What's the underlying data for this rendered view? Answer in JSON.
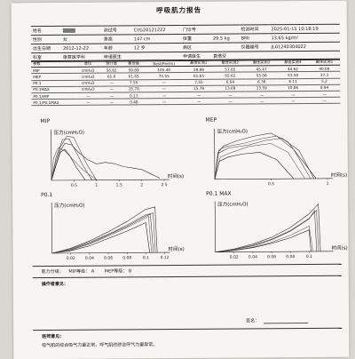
{
  "report": {
    "title": "呼吸肌力报告",
    "info_rows": [
      [
        {
          "label": "姓名",
          "value": "",
          "redacted": true
        },
        {
          "label": "测试号",
          "value": "CYG20121222"
        },
        {
          "label": "门诊号",
          "value": ""
        },
        {
          "label": "检测时间",
          "value": "2025-01-15 10:18:19"
        }
      ],
      [
        {
          "label": "性别",
          "value": "女"
        },
        {
          "label": "身高",
          "value": "147 cm"
        },
        {
          "label": "体重",
          "value": "29.5 kg"
        },
        {
          "label": "BMI",
          "value": "13.65 kg/m²"
        }
      ],
      [
        {
          "label": "出生日期",
          "value": "2012-12-22"
        },
        {
          "label": "年龄",
          "value": "12 岁"
        },
        {
          "label": "病区",
          "value": ""
        },
        {
          "label": "仪器编号",
          "value": "JL01240304022"
        }
      ],
      [
        {
          "label": "科室",
          "value": "康复医学科"
        },
        {
          "label": "申请医生",
          "value": ""
        },
        {
          "label": "申请医生",
          "value": "袁倩芬"
        },
        {
          "label": "",
          "value": ""
        }
      ]
    ],
    "results_headers": [
      "参数",
      "单位",
      "预计值",
      "最佳值",
      "Best/Pre(%)",
      "最佳实测1",
      "最佳实测2",
      "最佳实测3",
      "最佳实测4",
      "最佳实测5"
    ],
    "results_rows": [
      [
        "MIP",
        "cmH₂O",
        "56.82",
        "59.89",
        "105.40",
        "59.89",
        "57.65",
        "45.47",
        "44.62",
        "40.08"
      ],
      [
        "MEP",
        "cmH₂O",
        "81.6",
        "61.65",
        "75.55",
        "61.65",
        "55.62",
        "55.08",
        "53.59",
        "37.3"
      ],
      [
        "P0.1",
        "cmH₂O",
        "—",
        "7.55",
        "—",
        "7.55",
        "6.54",
        "6.38",
        "6.11",
        "5.2"
      ],
      [
        "P0.1MAX",
        "cmH₂O",
        "—",
        "15.78",
        "—",
        "15.78",
        "13.69",
        "13.59",
        "10.86",
        "8.94"
      ],
      [
        "P0.1/MIP",
        "—",
        "—",
        "0.13",
        "—",
        "—",
        "—",
        "—",
        "—",
        "—"
      ],
      [
        "P0.1/P0.1MAX",
        "—",
        "—",
        "0.48",
        "—",
        "—",
        "—",
        "—",
        "—",
        "—"
      ]
    ],
    "grade_line": {
      "label": "肌力分级：",
      "mip": "MIP等级：  A",
      "mep": "MEP等级：  B"
    },
    "operator_label": "操作者意见：",
    "signature_label": "签名：",
    "advice_label": "医师意见：",
    "advice_text": "吸气肌的综合吸气力量正常。呼气肌的综合呼气力量异常。"
  },
  "chart_data": [
    {
      "type": "line",
      "title": "MIP",
      "ylabel": "压力(cmH₂O)",
      "xlabel": "时间(s)",
      "xlim": [
        0,
        2.5
      ],
      "ylim": [
        0,
        65
      ],
      "xticks": [
        0.5,
        1,
        1.5,
        2,
        2.5
      ],
      "xtick_labels": [
        "0.5",
        "1",
        "1.5",
        "2",
        "2.5"
      ],
      "series": [
        {
          "x": [
            0,
            0.1,
            0.2,
            0.3,
            0.45,
            0.6,
            0.8,
            1.0,
            1.2,
            1.4,
            1.6,
            1.8,
            2.0,
            2.2,
            2.4
          ],
          "y": [
            0,
            20,
            40,
            50,
            48,
            38,
            28,
            22,
            24,
            22,
            18,
            16,
            14,
            8,
            2
          ]
        },
        {
          "x": [
            0,
            0.1,
            0.2,
            0.35,
            0.5,
            0.6,
            0.8,
            1.0
          ],
          "y": [
            0,
            25,
            45,
            60,
            58,
            45,
            20,
            0
          ]
        },
        {
          "x": [
            0,
            0.1,
            0.25,
            0.4,
            0.5,
            0.7,
            0.9
          ],
          "y": [
            0,
            30,
            55,
            56,
            44,
            20,
            0
          ]
        },
        {
          "x": [
            0,
            0.05,
            0.15,
            0.3,
            0.45,
            0.7,
            1.0
          ],
          "y": [
            0,
            30,
            44,
            40,
            30,
            14,
            0
          ]
        },
        {
          "x": [
            0,
            0.1,
            0.2,
            0.3,
            0.4,
            0.55,
            0.75
          ],
          "y": [
            0,
            20,
            38,
            42,
            34,
            18,
            0
          ]
        }
      ]
    },
    {
      "type": "line",
      "title": "MEP",
      "ylabel": "压力(cmH₂O)",
      "xlabel": "时间(s)",
      "xlim": [
        0,
        1
      ],
      "ylim": [
        0,
        65
      ],
      "xticks": [
        0.5,
        1
      ],
      "xtick_labels": [
        "0.5",
        "1"
      ],
      "series": [
        {
          "x": [
            0,
            0.03,
            0.08,
            0.2,
            0.35,
            0.5,
            0.65,
            0.8,
            0.9
          ],
          "y": [
            0,
            36,
            45,
            52,
            58,
            62,
            50,
            20,
            0
          ]
        },
        {
          "x": [
            0,
            0.04,
            0.1,
            0.25,
            0.4,
            0.55,
            0.7,
            0.85
          ],
          "y": [
            0,
            40,
            44,
            48,
            54,
            58,
            40,
            0
          ]
        },
        {
          "x": [
            0,
            0.03,
            0.12,
            0.3,
            0.45,
            0.6,
            0.75,
            0.88
          ],
          "y": [
            0,
            35,
            42,
            46,
            52,
            55,
            38,
            0
          ]
        },
        {
          "x": [
            0,
            0.05,
            0.15,
            0.3,
            0.5,
            0.65,
            0.8
          ],
          "y": [
            0,
            30,
            36,
            44,
            48,
            36,
            0
          ]
        },
        {
          "x": [
            0,
            0.04,
            0.12,
            0.25,
            0.4,
            0.55,
            0.7
          ],
          "y": [
            0,
            24,
            30,
            34,
            36,
            26,
            0
          ]
        }
      ]
    },
    {
      "type": "line",
      "title": "P0.1",
      "ylabel": "压力(cmH₂O)",
      "xlabel": "时间(s)",
      "xlim": [
        0,
        0.12
      ],
      "ylim": [
        0,
        8
      ],
      "xticks": [
        0.02,
        0.04,
        0.06,
        0.08,
        0.1,
        0.12
      ],
      "xtick_labels": [
        "0.02",
        "0.04",
        "0.06",
        "0.08",
        "0.1",
        "0.12"
      ],
      "series": [
        {
          "x": [
            0,
            0.02,
            0.04,
            0.06,
            0.08,
            0.1,
            0.11,
            0.112
          ],
          "y": [
            0,
            0.8,
            2.0,
            3.5,
            5.2,
            7.2,
            7.6,
            0
          ]
        },
        {
          "x": [
            0,
            0.02,
            0.04,
            0.06,
            0.08,
            0.1,
            0.108,
            0.11
          ],
          "y": [
            0,
            0.7,
            1.8,
            3.1,
            4.6,
            6.3,
            6.6,
            0
          ]
        },
        {
          "x": [
            0,
            0.02,
            0.04,
            0.06,
            0.08,
            0.1,
            0.105,
            0.108
          ],
          "y": [
            0,
            0.6,
            1.6,
            3.0,
            4.4,
            6.1,
            6.4,
            0
          ]
        },
        {
          "x": [
            0,
            0.02,
            0.04,
            0.06,
            0.08,
            0.1,
            0.103,
            0.106
          ],
          "y": [
            0,
            0.5,
            1.5,
            2.8,
            4.2,
            5.8,
            6.1,
            0
          ]
        },
        {
          "x": [
            0,
            0.02,
            0.04,
            0.06,
            0.08,
            0.1,
            0.104
          ],
          "y": [
            0,
            0.4,
            1.2,
            2.4,
            3.6,
            5.0,
            0
          ]
        }
      ]
    },
    {
      "type": "line",
      "title": "P0.1 MAX",
      "ylabel": "压力(cmH₂O)",
      "xlabel": "时间(s)",
      "xlim": [
        0,
        0.12
      ],
      "ylim": [
        0,
        16
      ],
      "xticks": [
        0.02,
        0.04,
        0.06,
        0.08,
        0.1
      ],
      "xtick_labels": [
        "0.02",
        "0.04",
        "0.06",
        "0.08",
        "0.1"
      ],
      "series": [
        {
          "x": [
            0,
            0.02,
            0.04,
            0.06,
            0.08,
            0.1,
            0.11,
            0.112
          ],
          "y": [
            0,
            1.0,
            2.6,
            4.8,
            8.0,
            12.5,
            15.8,
            0
          ]
        },
        {
          "x": [
            0,
            0.02,
            0.04,
            0.06,
            0.08,
            0.1,
            0.108,
            0.11
          ],
          "y": [
            0,
            0.9,
            2.2,
            4.2,
            7.0,
            11.0,
            13.7,
            0
          ]
        },
        {
          "x": [
            0,
            0.02,
            0.04,
            0.06,
            0.08,
            0.1,
            0.106,
            0.108
          ],
          "y": [
            0,
            0.8,
            2.0,
            4.0,
            6.8,
            10.8,
            13.6,
            0
          ]
        },
        {
          "x": [
            0,
            0.02,
            0.04,
            0.06,
            0.08,
            0.1,
            0.104
          ],
          "y": [
            0,
            0.6,
            1.6,
            3.2,
            5.4,
            8.5,
            0
          ]
        },
        {
          "x": [
            0,
            0.02,
            0.04,
            0.06,
            0.08,
            0.1,
            0.102
          ],
          "y": [
            0,
            0.5,
            1.4,
            2.8,
            4.6,
            7.2,
            0
          ]
        }
      ]
    }
  ]
}
